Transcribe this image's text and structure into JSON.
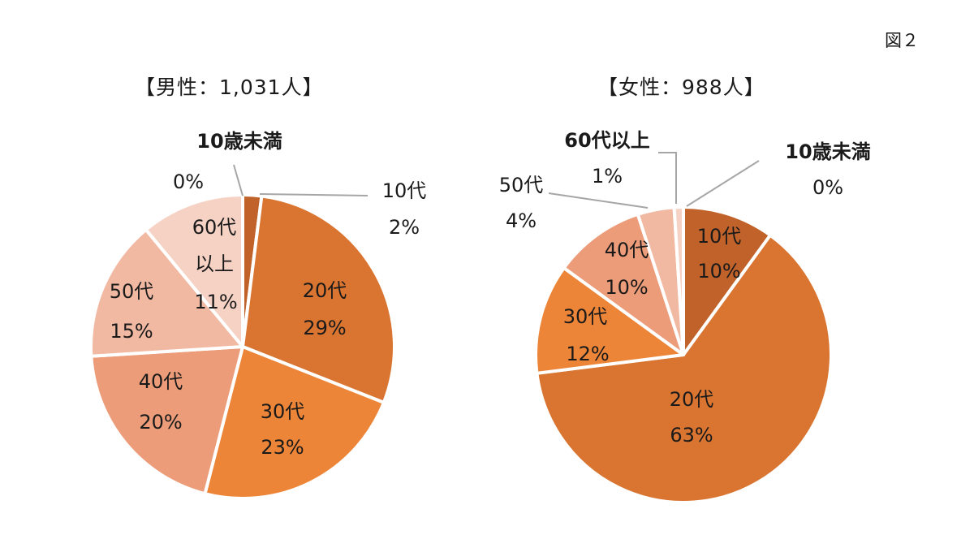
{
  "figure_label": "図２",
  "chart_data": [
    {
      "type": "pie",
      "title": "【男性：1,031人】",
      "slices": [
        {
          "label": "10歳未満",
          "value": 0,
          "pct": "0%",
          "color": "#b85e27"
        },
        {
          "label": "10代",
          "value": 2,
          "pct": "2%",
          "color": "#c0622a"
        },
        {
          "label": "20代",
          "value": 29,
          "pct": "29%",
          "color": "#d97531"
        },
        {
          "label": "30代",
          "value": 23,
          "pct": "23%",
          "color": "#ed8538"
        },
        {
          "label": "40代",
          "value": 20,
          "pct": "20%",
          "color": "#ec9c79"
        },
        {
          "label": "50代",
          "value": 15,
          "pct": "15%",
          "color": "#f2b9a2"
        },
        {
          "label": "60代以上",
          "label_lines": [
            "60代",
            "以上"
          ],
          "value": 11,
          "pct": "11%",
          "color": "#f6d2c5"
        }
      ]
    },
    {
      "type": "pie",
      "title": "【女性：988人】",
      "slices": [
        {
          "label": "10歳未満",
          "value": 0,
          "pct": "0%",
          "color": "#b85e27"
        },
        {
          "label": "10代",
          "value": 10,
          "pct": "10%",
          "color": "#c0622a"
        },
        {
          "label": "20代",
          "value": 63,
          "pct": "63%",
          "color": "#d97531"
        },
        {
          "label": "30代",
          "value": 12,
          "pct": "12%",
          "color": "#ed8538"
        },
        {
          "label": "40代",
          "value": 10,
          "pct": "10%",
          "color": "#ec9c79"
        },
        {
          "label": "50代",
          "value": 4,
          "pct": "4%",
          "color": "#f2b9a2"
        },
        {
          "label": "60代以上",
          "value": 1,
          "pct": "1%",
          "color": "#f6d2c5"
        }
      ]
    }
  ]
}
